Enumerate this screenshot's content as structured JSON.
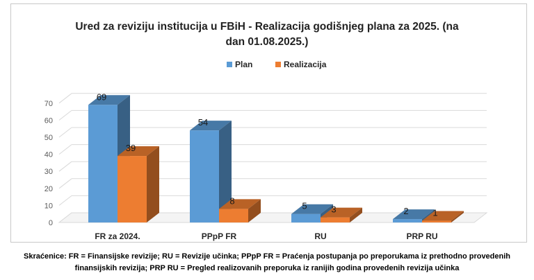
{
  "chart_data": {
    "type": "bar",
    "title": "Ured za reviziju institucija u FBiH - Realizacija godišnjeg plana za 2025. (na dan 01.08.2025.)",
    "title_lines": [
      "Ured za reviziju institucija u FBiH - Realizacija godišnjeg plana za 2025. (na",
      "dan 01.08.2025.)"
    ],
    "categories": [
      "FR za 2024.",
      "PPpP FR",
      "RU",
      "PRP RU"
    ],
    "series": [
      {
        "name": "Plan",
        "values": [
          69,
          54,
          5,
          2
        ],
        "color": "#5b9bd5"
      },
      {
        "name": "Realizacija",
        "values": [
          39,
          8,
          3,
          1
        ],
        "color": "#ed7d31"
      }
    ],
    "y_ticks": [
      "0",
      "10",
      "20",
      "30",
      "40",
      "50",
      "60",
      "70"
    ],
    "ylim": [
      0,
      70
    ],
    "grid": true,
    "legend": "top-center",
    "three_d": true
  },
  "footnote": {
    "line1": "Skraćenice: FR = Finansijske revizije; RU = Revizije učinka; PPpP FR = Praćenja postupanja po preporukama iz prethodno provedenih",
    "line2": "finansijskih revizija; PRP RU = Pregled realizovanih preporuka iz ranijih godina provedenih revizija učinka"
  }
}
